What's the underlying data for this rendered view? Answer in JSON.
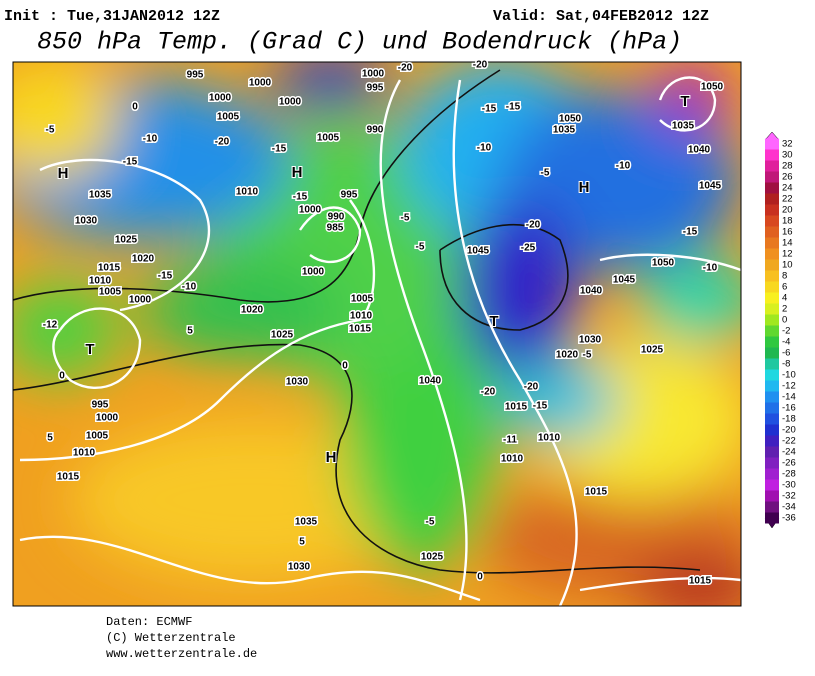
{
  "header": {
    "init": "Init : Tue,31JAN2012 12Z",
    "valid": "Valid: Sat,04FEB2012 12Z",
    "title": "850 hPa Temp. (Grad C) und Bodendruck (hPa)"
  },
  "map": {
    "labels": [
      "995",
      "1000",
      "1000",
      "1005",
      "1000",
      "1005",
      "1000",
      "995",
      "990",
      "1010",
      "995",
      "990",
      "985",
      "1000",
      "1000",
      "1005",
      "1010",
      "1015",
      "1020",
      "1025",
      "1030",
      "1035",
      "1030",
      "1025",
      "1020",
      "1015",
      "1010",
      "1005",
      "1000",
      "995",
      "1000",
      "1005",
      "1010",
      "1015",
      "1035",
      "1030",
      "1025",
      "1015",
      "1015",
      "1010",
      "1010",
      "1015",
      "1020",
      "1025",
      "1030",
      "1040",
      "1045",
      "1050",
      "1045",
      "1040",
      "1050",
      "1050",
      "1035",
      "1035",
      "1040",
      "1045",
      "H",
      "H",
      "H",
      "H",
      "T",
      "T",
      "T",
      "-5",
      "-10",
      "-15",
      "-20",
      "-15",
      "-15",
      "-5",
      "-5",
      "-20",
      "-25",
      "-15",
      "-10",
      "-10",
      "-5",
      "-10",
      "-15",
      "-20",
      "-20",
      "-15",
      "-20",
      "-20",
      "-15",
      "-11",
      "-5",
      "-5",
      "0",
      "0",
      "5",
      "5",
      "0",
      "5",
      "-10",
      "-15",
      "-12",
      "0"
    ]
  },
  "colorbar": {
    "ticks": [
      32,
      30,
      28,
      26,
      24,
      22,
      20,
      18,
      16,
      14,
      12,
      10,
      8,
      6,
      4,
      2,
      0,
      -2,
      -4,
      -6,
      -8,
      -10,
      -12,
      -14,
      -16,
      -18,
      -20,
      -22,
      -24,
      -26,
      -28,
      -30,
      -32,
      -34,
      -36
    ],
    "colors": [
      "#ff66ff",
      "#ff33cc",
      "#e0209c",
      "#c01878",
      "#a01040",
      "#b02020",
      "#c83020",
      "#d84820",
      "#e06020",
      "#e87820",
      "#f09020",
      "#f0a820",
      "#f8c020",
      "#f8d820",
      "#f8f020",
      "#d8f020",
      "#a0e820",
      "#60d830",
      "#30c840",
      "#20b850",
      "#20c8a0",
      "#20d8e0",
      "#20b8f0",
      "#2090f0",
      "#2070e8",
      "#2050e0",
      "#2030d0",
      "#4020c0",
      "#6020b0",
      "#8020c0",
      "#a020d0",
      "#c020e0",
      "#a010b0",
      "#701080",
      "#400050"
    ]
  },
  "footer": {
    "source": "Daten: ECMWF",
    "copyright": "(C) Wetterzentrale",
    "url": "www.wetterzentrale.de"
  }
}
